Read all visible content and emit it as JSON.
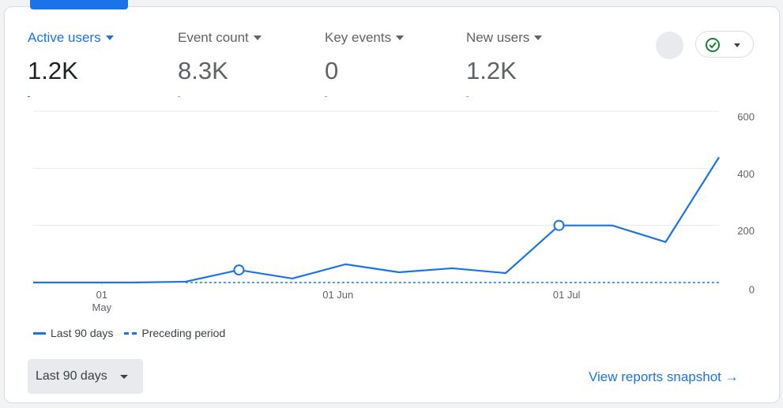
{
  "metrics": [
    {
      "label": "Active users",
      "value": "1.2K"
    },
    {
      "label": "Event count",
      "value": "8.3K"
    },
    {
      "label": "Key events",
      "value": "0"
    },
    {
      "label": "New users",
      "value": "1.2K"
    }
  ],
  "chart_data": {
    "type": "line",
    "x": [
      -9,
      4,
      11,
      18,
      25,
      32,
      39,
      46,
      53,
      60,
      67,
      74,
      81
    ],
    "xlim": [
      -9,
      81
    ],
    "xticks": [
      {
        "value": 0,
        "label": "01 May"
      },
      {
        "value": 31,
        "label": "01 Jun"
      },
      {
        "value": 61,
        "label": "01 Jul"
      }
    ],
    "ylim": [
      0,
      600
    ],
    "yticks": [
      0,
      200,
      400,
      600
    ],
    "grid": true,
    "series": [
      {
        "name": "Last 90 days",
        "color": "#1a73e8",
        "dash": false,
        "values": [
          0,
          0,
          3,
          44,
          14,
          64,
          36,
          50,
          33,
          200,
          200,
          142,
          439
        ],
        "marked_points": [
          3,
          9
        ]
      },
      {
        "name": "Preceding period",
        "color": "#1a73e8",
        "dash": true,
        "values": [
          null,
          null,
          0,
          0,
          0,
          0,
          0,
          0,
          0,
          0,
          0,
          0,
          0
        ]
      }
    ]
  },
  "controls": {
    "range_button": "Last 90 days",
    "link": "View reports snapshot"
  }
}
